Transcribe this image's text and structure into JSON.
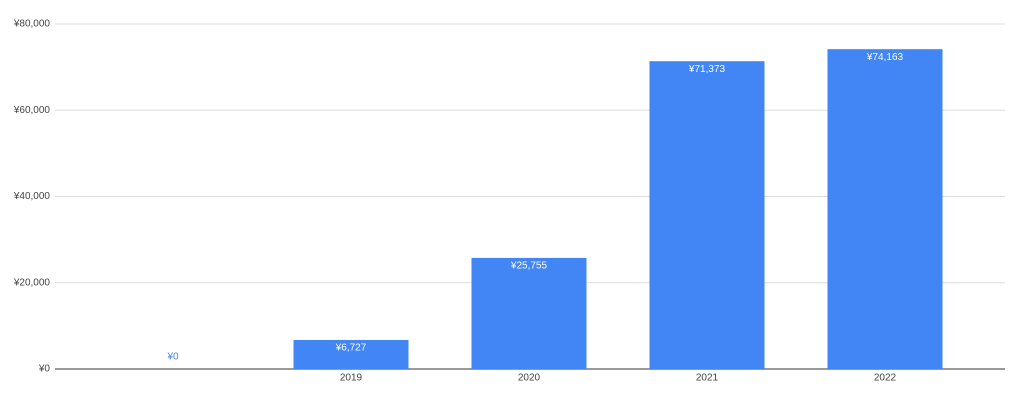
{
  "chart_data": {
    "type": "bar",
    "categories": [
      null,
      "2019",
      "2020",
      "2021",
      "2022"
    ],
    "values": [
      0,
      6727,
      25755,
      71373,
      74163
    ],
    "value_labels": [
      "¥0",
      "¥6,727",
      "¥25,755",
      "¥71,373",
      "¥74,163"
    ],
    "color": "#4285f4",
    "ylim": [
      0,
      80000
    ],
    "yticks": [
      {
        "value": 0,
        "label": "¥0"
      },
      {
        "value": 20000,
        "label": "¥20,000"
      },
      {
        "value": 40000,
        "label": "¥40,000"
      },
      {
        "value": 60000,
        "label": "¥60,000"
      },
      {
        "value": 80000,
        "label": "¥80,000"
      }
    ],
    "grid": true
  }
}
